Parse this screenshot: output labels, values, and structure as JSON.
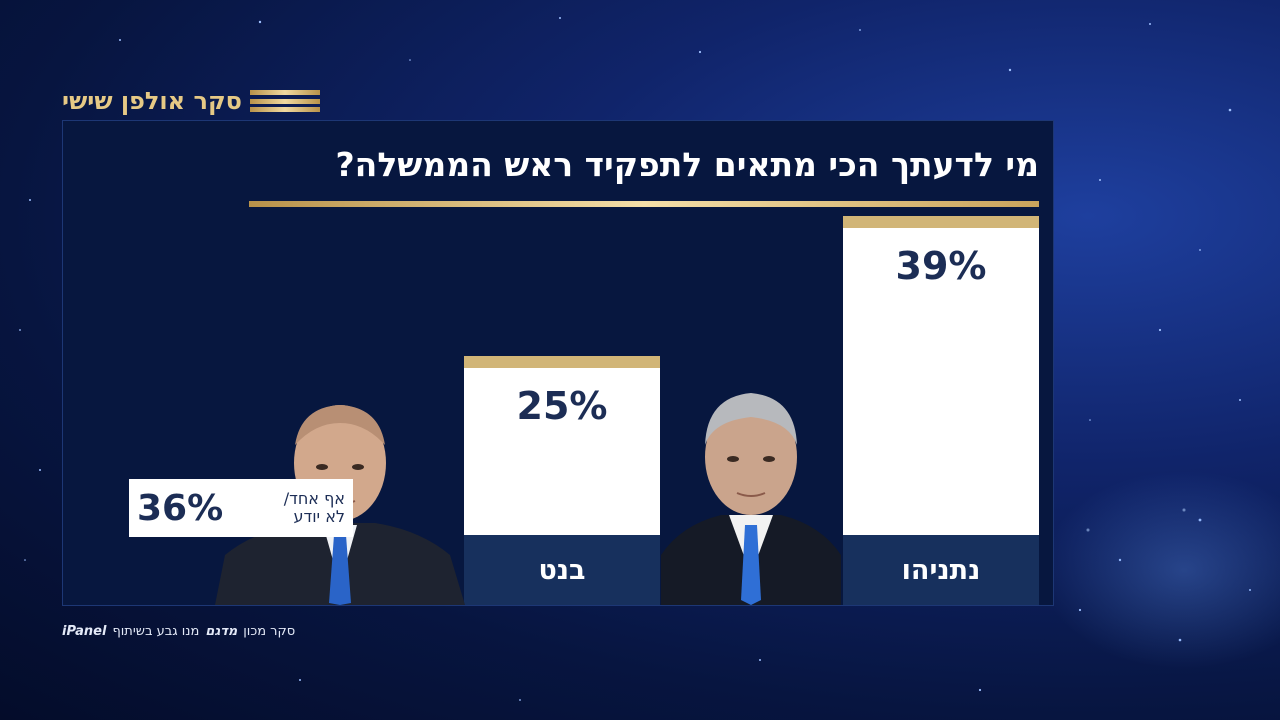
{
  "brand": {
    "title": "סקר אולפן שישי"
  },
  "chart_data": {
    "type": "bar",
    "title": "מי לדעתך הכי מתאים לתפקיד ראש הממשלה?",
    "categories": [
      "נתניהו",
      "בנט"
    ],
    "values": [
      39,
      25
    ],
    "value_labels": [
      "39%",
      "25%"
    ],
    "unit": "%",
    "other": {
      "label_line1": "אף אחד/",
      "label_line2": "לא יודע",
      "value": 36,
      "value_label": "36%"
    },
    "colors": {
      "bar": "#ffffff",
      "cap": "#d1b577",
      "label_box": "#17305d",
      "text": "#1c2d55"
    }
  },
  "credit": {
    "panel_logo": "iPanel",
    "text_left": "מנו גבע בשיתוף",
    "institute_logo": "מדגם",
    "text_right": "סקר מכון"
  }
}
